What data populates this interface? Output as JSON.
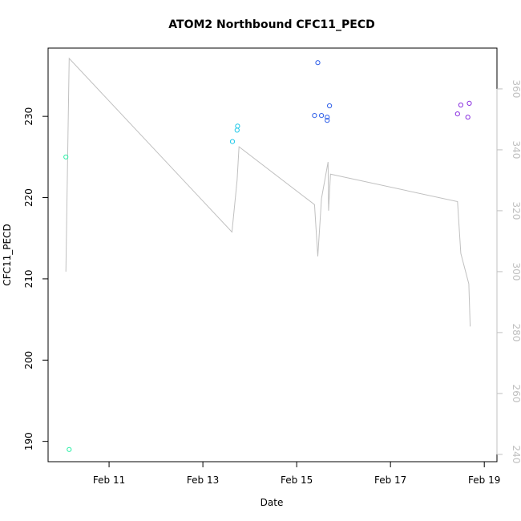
{
  "chart_data": {
    "type": "scatter",
    "title": "ATOM2 Northbound CFC11_PECD",
    "xlabel": "Date",
    "ylabel": "CFC11_PECD",
    "x_ticks": [
      {
        "x": 11.0,
        "label": "Feb 11"
      },
      {
        "x": 13.0,
        "label": "Feb 13"
      },
      {
        "x": 15.0,
        "label": "Feb 15"
      },
      {
        "x": 17.0,
        "label": "Feb 17"
      },
      {
        "x": 19.0,
        "label": "Feb 19"
      }
    ],
    "xlim": [
      9.7,
      19.27
    ],
    "ylim": [
      187.5,
      238.4
    ],
    "y_ticks": [
      190,
      200,
      210,
      220,
      230
    ],
    "y2_ticks": [
      240,
      260,
      280,
      300,
      320,
      340,
      360
    ],
    "y2lim": [
      237.6,
      373.4
    ],
    "grid": false,
    "points": [
      {
        "x": 10.08,
        "y": 225.0,
        "color": "#2ef0a8"
      },
      {
        "x": 10.15,
        "y": 189.0,
        "color": "#2ef0a8"
      },
      {
        "x": 13.63,
        "y": 226.9,
        "color": "#1fc8e8"
      },
      {
        "x": 13.73,
        "y": 228.3,
        "color": "#1fc8e8"
      },
      {
        "x": 13.74,
        "y": 228.8,
        "color": "#1fc8e8"
      },
      {
        "x": 15.38,
        "y": 230.1,
        "color": "#2f5fe8"
      },
      {
        "x": 15.45,
        "y": 236.6,
        "color": "#2f5fe8"
      },
      {
        "x": 15.53,
        "y": 230.1,
        "color": "#2f5fe8"
      },
      {
        "x": 15.65,
        "y": 229.9,
        "color": "#2f5fe8"
      },
      {
        "x": 15.65,
        "y": 229.5,
        "color": "#2f5fe8"
      },
      {
        "x": 15.7,
        "y": 231.3,
        "color": "#2f5fe8"
      },
      {
        "x": 18.43,
        "y": 230.3,
        "color": "#8a2fe0"
      },
      {
        "x": 18.5,
        "y": 231.4,
        "color": "#8a2fe0"
      },
      {
        "x": 18.65,
        "y": 229.9,
        "color": "#8a2fe0"
      },
      {
        "x": 18.68,
        "y": 231.6,
        "color": "#8a2fe0"
      }
    ],
    "secondary_line": {
      "color": "#c0c0c0",
      "points": [
        {
          "x": 10.08,
          "y": 300
        },
        {
          "x": 10.15,
          "y": 370
        },
        {
          "x": 13.62,
          "y": 313
        },
        {
          "x": 13.73,
          "y": 330
        },
        {
          "x": 13.77,
          "y": 341
        },
        {
          "x": 15.38,
          "y": 322
        },
        {
          "x": 15.45,
          "y": 305
        },
        {
          "x": 15.53,
          "y": 324
        },
        {
          "x": 15.67,
          "y": 336
        },
        {
          "x": 15.68,
          "y": 320
        },
        {
          "x": 15.72,
          "y": 332
        },
        {
          "x": 18.43,
          "y": 323
        },
        {
          "x": 18.5,
          "y": 306
        },
        {
          "x": 18.67,
          "y": 296
        },
        {
          "x": 18.7,
          "y": 282
        }
      ]
    }
  }
}
